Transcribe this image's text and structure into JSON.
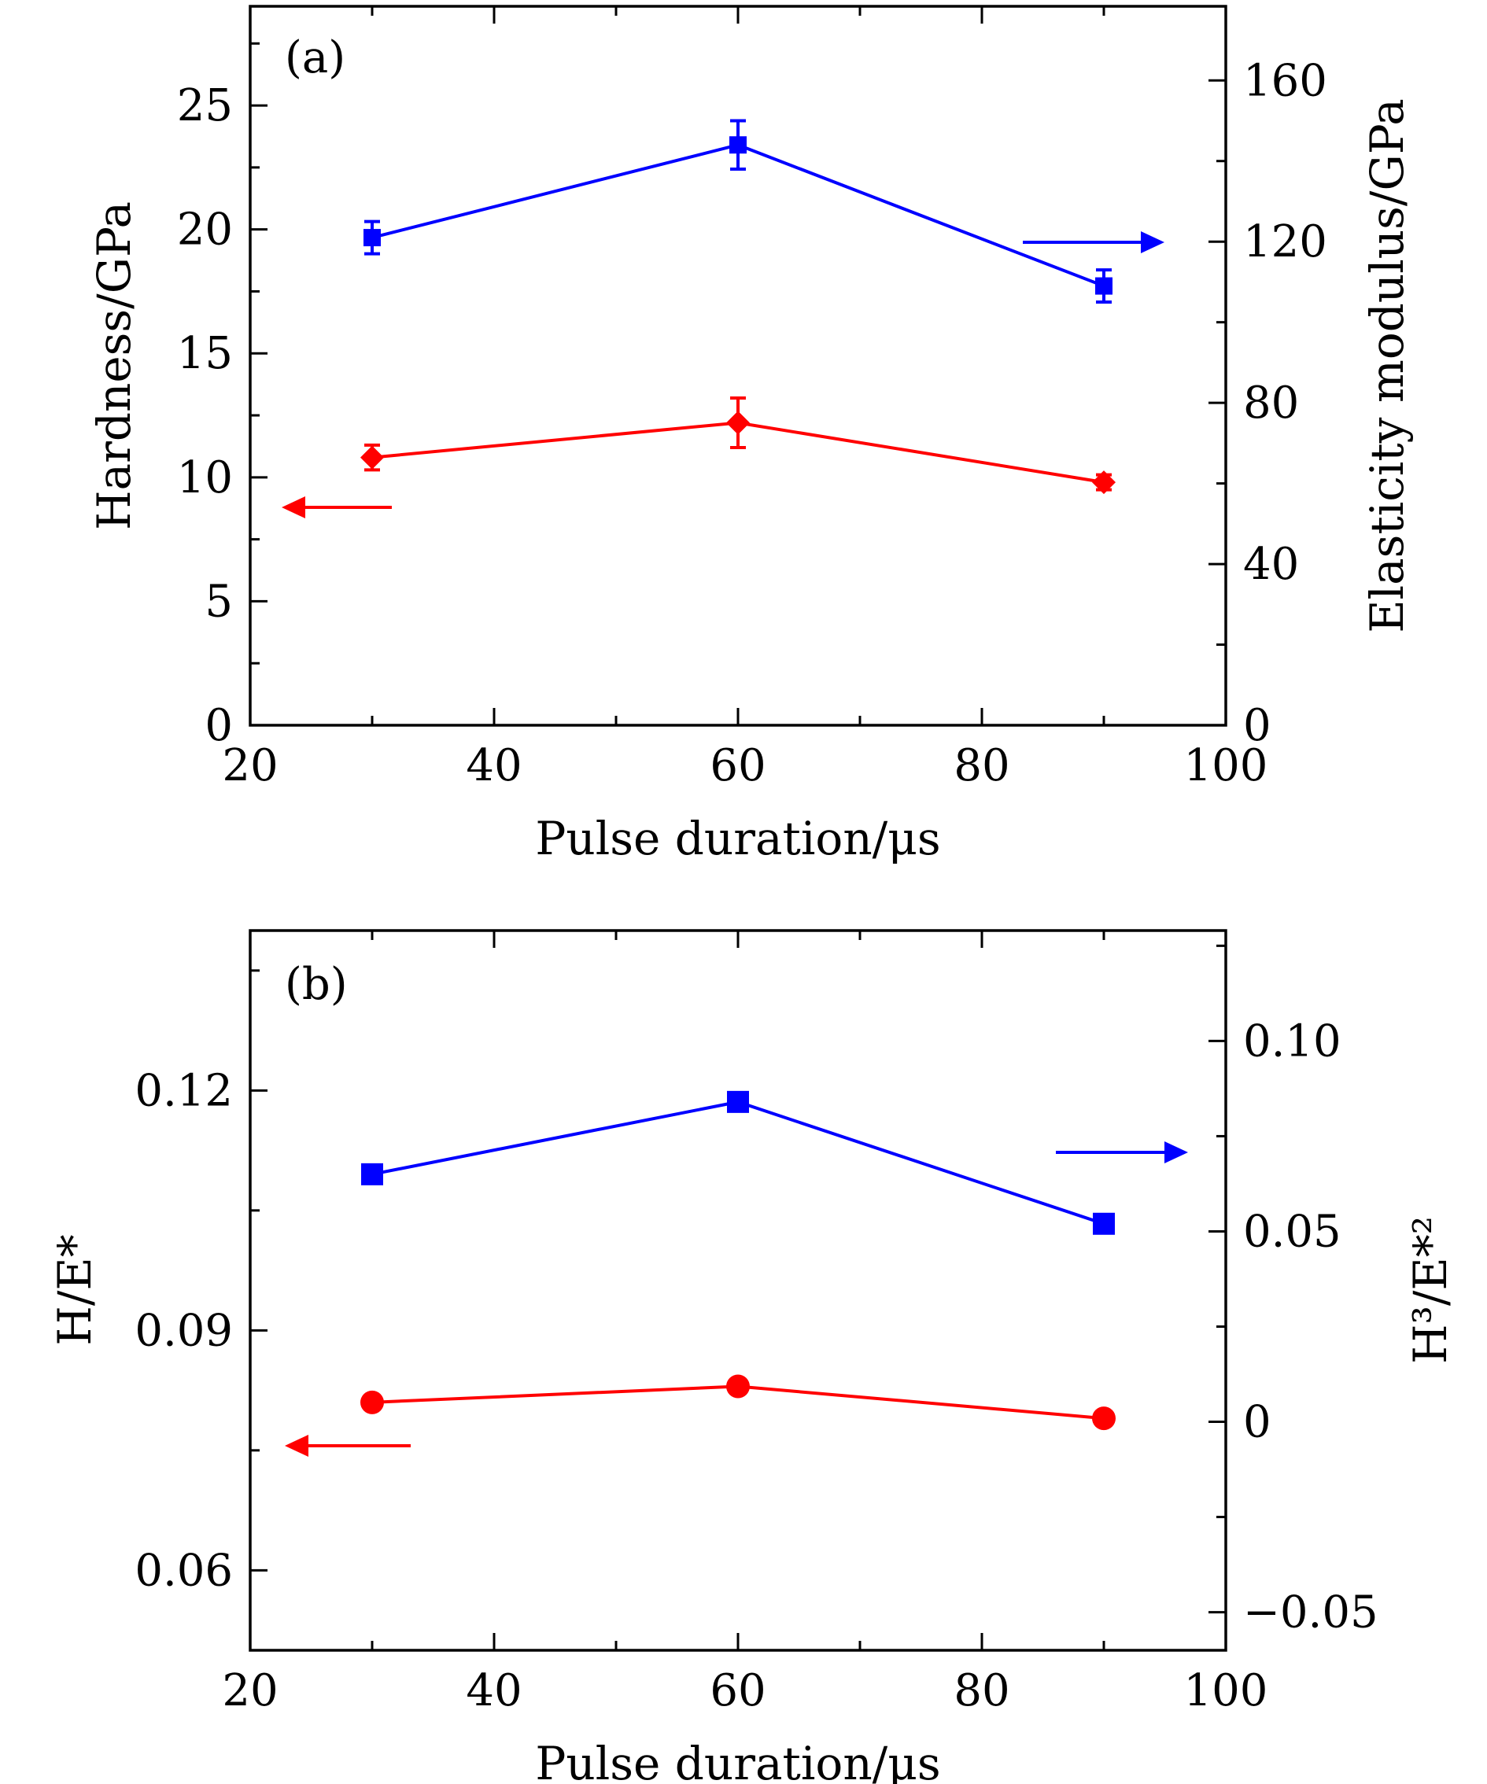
{
  "chart_data": [
    {
      "type": "line",
      "panel_label": "(a)",
      "xlabel": "Pulse duration/μs",
      "ylabel_left": "Hardness/GPa",
      "ylabel_right": "Elasticity modulus/GPa",
      "xlim": [
        20,
        100
      ],
      "ylim_left": [
        0,
        29
      ],
      "ylim_right": [
        0,
        178.4
      ],
      "x_ticks": [
        20,
        40,
        60,
        80,
        100
      ],
      "x_tick_labels": [
        "20",
        "40",
        "60",
        "80",
        "100"
      ],
      "y_left_ticks": [
        0,
        5,
        10,
        15,
        20,
        25
      ],
      "y_left_tick_labels": [
        "0",
        "5",
        "10",
        "15",
        "20",
        "25"
      ],
      "y_right_ticks": [
        0,
        40,
        80,
        120,
        160
      ],
      "y_right_tick_labels": [
        "0",
        "40",
        "80",
        "120",
        "160"
      ],
      "grid": false,
      "series": [
        {
          "name": "Elasticity modulus",
          "axis": "right",
          "color": "#0000ff",
          "marker": "square",
          "x": [
            30,
            60,
            90
          ],
          "y": [
            121,
            144,
            109
          ],
          "err": [
            4,
            6,
            4
          ]
        },
        {
          "name": "Hardness",
          "axis": "left",
          "color": "#ff0000",
          "marker": "diamond",
          "x": [
            30,
            60,
            90
          ],
          "y": [
            10.8,
            12.2,
            9.8
          ],
          "err": [
            0.5,
            1.0,
            0.3
          ]
        }
      ],
      "arrows": [
        {
          "series": "Elasticity modulus",
          "direction": "right"
        },
        {
          "series": "Hardness",
          "direction": "left"
        }
      ]
    },
    {
      "type": "line",
      "panel_label": "(b)",
      "xlabel": "Pulse duration/μs",
      "ylabel_left": "H/E*",
      "ylabel_right": "H³/E*²",
      "xlim": [
        20,
        100
      ],
      "ylim_left": [
        0.05,
        0.14
      ],
      "ylim_right": [
        -0.06,
        0.129
      ],
      "x_ticks": [
        20,
        40,
        60,
        80,
        100
      ],
      "x_tick_labels": [
        "20",
        "40",
        "60",
        "80",
        "100"
      ],
      "y_left_ticks": [
        0.06,
        0.09,
        0.12
      ],
      "y_left_tick_labels": [
        "0.06",
        "0.09",
        "0.12"
      ],
      "y_right_ticks": [
        -0.05,
        0,
        0.05,
        0.1
      ],
      "y_right_tick_labels": [
        "−0.05",
        "0",
        "0.05",
        "0.10"
      ],
      "grid": false,
      "series": [
        {
          "name": "H3/E*2",
          "axis": "right",
          "color": "#0000ff",
          "marker": "square",
          "x": [
            30,
            60,
            90
          ],
          "y": [
            0.065,
            0.084,
            0.052
          ]
        },
        {
          "name": "H/E*",
          "axis": "left",
          "color": "#ff0000",
          "marker": "circle",
          "x": [
            30,
            60,
            90
          ],
          "y": [
            0.081,
            0.083,
            0.079
          ]
        }
      ],
      "arrows": [
        {
          "series": "H3/E*2",
          "direction": "right"
        },
        {
          "series": "H/E*",
          "direction": "left"
        }
      ]
    }
  ]
}
